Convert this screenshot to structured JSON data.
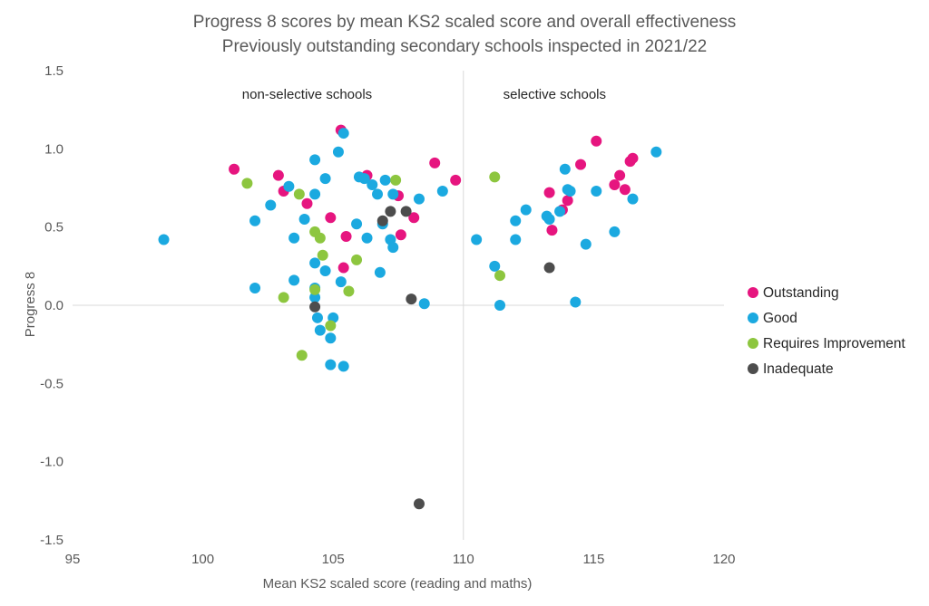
{
  "chart_data": {
    "type": "scatter",
    "title": "Progress 8 scores by mean KS2 scaled score and overall effectiveness",
    "subtitle": "Previously outstanding secondary schools inspected in 2021/22",
    "xlabel": "Mean KS2 scaled score (reading and maths)",
    "ylabel": "Progress 8",
    "xlim": [
      95,
      120
    ],
    "ylim": [
      -1.5,
      1.5
    ],
    "x_ticks": [
      "95",
      "100",
      "105",
      "110",
      "115",
      "120"
    ],
    "y_ticks": [
      "-1.5",
      "-1.0",
      "-0.5",
      "0.0",
      "0.5",
      "1.0",
      "1.5"
    ],
    "grid": false,
    "reference_lines": {
      "x": 110,
      "y": 0
    },
    "annotations": [
      {
        "text": "non-selective schools",
        "x": 104,
        "y": 1.35
      },
      {
        "text": "selective schools",
        "x": 113.5,
        "y": 1.35
      }
    ],
    "legend_position": "right",
    "series": [
      {
        "name": "Outstanding",
        "color": "#e6157f",
        "points": [
          [
            101.2,
            0.87
          ],
          [
            102.9,
            0.83
          ],
          [
            103.1,
            0.73
          ],
          [
            104.0,
            0.65
          ],
          [
            104.9,
            0.56
          ],
          [
            105.3,
            1.12
          ],
          [
            105.5,
            0.44
          ],
          [
            105.4,
            0.24
          ],
          [
            106.3,
            0.83
          ],
          [
            107.5,
            0.7
          ],
          [
            107.6,
            0.45
          ],
          [
            108.1,
            0.56
          ],
          [
            108.9,
            0.91
          ],
          [
            109.7,
            0.8
          ],
          [
            113.3,
            0.72
          ],
          [
            113.4,
            0.48
          ],
          [
            113.8,
            0.61
          ],
          [
            114.0,
            0.67
          ],
          [
            114.5,
            0.9
          ],
          [
            115.1,
            1.05
          ],
          [
            115.8,
            0.77
          ],
          [
            116.0,
            0.83
          ],
          [
            116.2,
            0.74
          ],
          [
            116.4,
            0.92
          ],
          [
            116.5,
            0.94
          ]
        ]
      },
      {
        "name": "Good",
        "color": "#1ba9e0",
        "points": [
          [
            98.5,
            0.42
          ],
          [
            102.0,
            0.54
          ],
          [
            102.0,
            0.11
          ],
          [
            102.6,
            0.64
          ],
          [
            103.3,
            0.76
          ],
          [
            103.5,
            0.43
          ],
          [
            103.5,
            0.16
          ],
          [
            103.9,
            0.55
          ],
          [
            104.3,
            0.93
          ],
          [
            104.3,
            0.71
          ],
          [
            104.3,
            0.27
          ],
          [
            104.3,
            0.11
          ],
          [
            104.3,
            0.05
          ],
          [
            104.4,
            -0.08
          ],
          [
            104.5,
            -0.16
          ],
          [
            104.7,
            0.81
          ],
          [
            104.7,
            0.22
          ],
          [
            104.9,
            -0.21
          ],
          [
            104.9,
            -0.38
          ],
          [
            105.0,
            -0.08
          ],
          [
            105.2,
            0.98
          ],
          [
            105.3,
            0.15
          ],
          [
            105.4,
            1.1
          ],
          [
            105.4,
            -0.39
          ],
          [
            105.9,
            0.52
          ],
          [
            106.0,
            0.82
          ],
          [
            106.2,
            0.81
          ],
          [
            106.3,
            0.43
          ],
          [
            106.5,
            0.77
          ],
          [
            106.7,
            0.71
          ],
          [
            106.8,
            0.21
          ],
          [
            106.9,
            0.52
          ],
          [
            107.0,
            0.8
          ],
          [
            107.2,
            0.42
          ],
          [
            107.3,
            0.71
          ],
          [
            107.3,
            0.37
          ],
          [
            108.3,
            0.68
          ],
          [
            108.5,
            0.01
          ],
          [
            109.2,
            0.73
          ],
          [
            110.5,
            0.42
          ],
          [
            111.2,
            0.25
          ],
          [
            111.4,
            0.0
          ],
          [
            112.0,
            0.54
          ],
          [
            112.0,
            0.42
          ],
          [
            112.4,
            0.61
          ],
          [
            113.2,
            0.57
          ],
          [
            113.3,
            0.55
          ],
          [
            113.7,
            0.6
          ],
          [
            113.9,
            0.87
          ],
          [
            114.0,
            0.74
          ],
          [
            114.1,
            0.73
          ],
          [
            114.3,
            0.02
          ],
          [
            114.7,
            0.39
          ],
          [
            115.1,
            0.73
          ],
          [
            115.8,
            0.47
          ],
          [
            116.5,
            0.68
          ],
          [
            117.4,
            0.98
          ]
        ]
      },
      {
        "name": "Requires Improvement",
        "color": "#8dc63f",
        "points": [
          [
            101.7,
            0.78
          ],
          [
            103.1,
            0.05
          ],
          [
            103.7,
            0.71
          ],
          [
            103.8,
            -0.32
          ],
          [
            104.3,
            0.47
          ],
          [
            104.3,
            0.1
          ],
          [
            104.5,
            0.43
          ],
          [
            104.6,
            0.32
          ],
          [
            104.9,
            -0.13
          ],
          [
            105.6,
            0.09
          ],
          [
            105.9,
            0.29
          ],
          [
            107.4,
            0.8
          ],
          [
            111.2,
            0.82
          ],
          [
            111.4,
            0.19
          ]
        ]
      },
      {
        "name": "Inadequate",
        "color": "#4d4d4d",
        "points": [
          [
            104.3,
            -0.01
          ],
          [
            106.9,
            0.54
          ],
          [
            107.2,
            0.6
          ],
          [
            107.8,
            0.6
          ],
          [
            108.0,
            0.04
          ],
          [
            108.3,
            -1.27
          ],
          [
            113.3,
            0.24
          ]
        ]
      }
    ]
  }
}
